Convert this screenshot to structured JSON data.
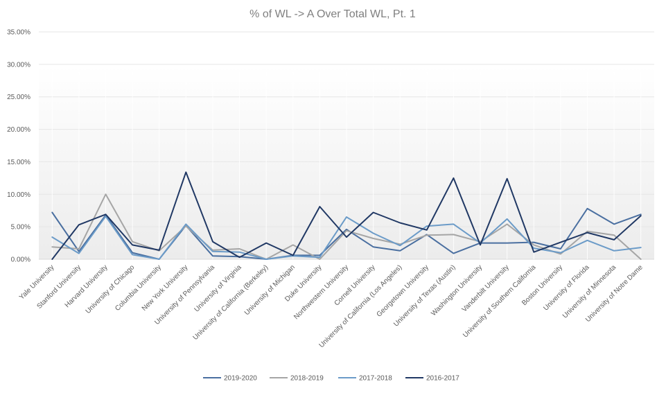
{
  "chart_data": {
    "type": "line",
    "title": "% of WL -> A Over Total WL, Pt. 1",
    "xlabel": "",
    "ylabel": "",
    "ylim": [
      0,
      0.35
    ],
    "yticks": [
      0,
      0.05,
      0.1,
      0.15,
      0.2,
      0.25,
      0.3,
      0.35
    ],
    "ytick_labels": [
      "0.00%",
      "5.00%",
      "10.00%",
      "15.00%",
      "20.00%",
      "25.00%",
      "30.00%",
      "35.00%"
    ],
    "grid": true,
    "legend_position": "bottom",
    "categories": [
      "Yale University",
      "Stanford University",
      "Harvard University",
      "University of Chicago",
      "Columbia University",
      "New York University",
      "University of Pennsylvania",
      "University of Virginia",
      "University of California (Berkeley)",
      "University of Michigan",
      "Duke University",
      "Northwestern University",
      "Cornell University",
      "University of California (Los Angeles)",
      "Georgetown University",
      "University of Texas (Austin)",
      "Washington University",
      "Vanderbilt University",
      "University of Southern California",
      "Boston University",
      "University of Florida",
      "University of Minnesota",
      "University of Notre Dame"
    ],
    "series": [
      {
        "name": "2019-2020",
        "color": "#4a6fa0",
        "values": [
          0.072,
          0.012,
          0.068,
          0.01,
          0.0,
          0.052,
          0.005,
          0.004,
          0.0,
          0.006,
          0.006,
          0.046,
          0.019,
          0.013,
          0.038,
          0.009,
          0.025,
          0.025,
          0.026,
          0.016,
          0.078,
          0.054,
          0.069
        ]
      },
      {
        "name": "2018-2019",
        "color": "#a5a5a5",
        "values": [
          0.019,
          0.016,
          0.1,
          0.027,
          0.013,
          0.051,
          0.014,
          0.016,
          0.0,
          0.022,
          0.0,
          0.044,
          0.032,
          0.023,
          0.037,
          0.038,
          0.027,
          0.054,
          0.022,
          0.008,
          0.043,
          0.037,
          0.0
        ]
      },
      {
        "name": "2017-2018",
        "color": "#6b9bc8",
        "values": [
          0.034,
          0.009,
          0.066,
          0.007,
          0.0,
          0.054,
          0.012,
          0.011,
          0.0,
          0.005,
          0.003,
          0.065,
          0.04,
          0.021,
          0.051,
          0.054,
          0.025,
          0.062,
          0.017,
          0.01,
          0.029,
          0.013,
          0.018
        ]
      },
      {
        "name": "2016-2017",
        "color": "#203864",
        "values": [
          0.0,
          0.053,
          0.069,
          0.022,
          0.014,
          0.134,
          0.027,
          0.003,
          0.025,
          0.006,
          0.081,
          0.034,
          0.072,
          0.056,
          0.045,
          0.125,
          0.022,
          0.124,
          0.011,
          0.026,
          0.041,
          0.03,
          0.067
        ]
      }
    ]
  }
}
